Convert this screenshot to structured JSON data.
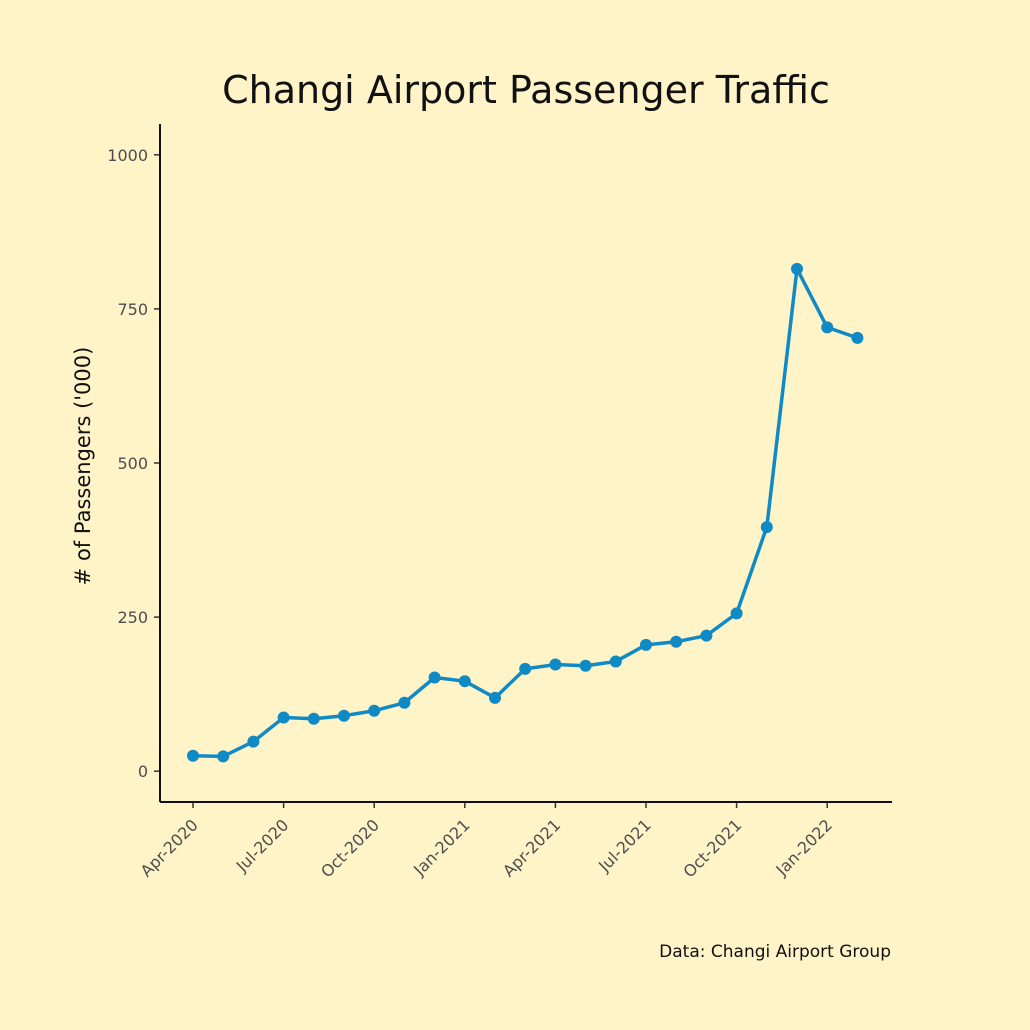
{
  "chart_data": {
    "type": "line",
    "title": "Changi Airport Passenger Traffic",
    "xlabel": "",
    "ylabel": "# of Passengers ('000)",
    "caption": "Data: Changi Airport Group",
    "x": [
      "Apr-2020",
      "May-2020",
      "Jun-2020",
      "Jul-2020",
      "Aug-2020",
      "Sep-2020",
      "Oct-2020",
      "Nov-2020",
      "Dec-2020",
      "Jan-2021",
      "Feb-2021",
      "Mar-2021",
      "Apr-2021",
      "May-2021",
      "Jun-2021",
      "Jul-2021",
      "Aug-2021",
      "Sep-2021",
      "Oct-2021",
      "Nov-2021",
      "Dec-2021",
      "Jan-2022",
      "Feb-2022"
    ],
    "series": [
      {
        "name": "Passengers",
        "values": [
          25,
          24,
          48,
          87,
          85,
          90,
          98,
          111,
          152,
          146,
          119,
          166,
          173,
          171,
          178,
          205,
          210,
          220,
          256,
          396,
          815,
          720,
          703
        ]
      }
    ],
    "x_tick_labels": [
      "Apr-2020",
      "Jul-2020",
      "Oct-2020",
      "Jan-2021",
      "Apr-2021",
      "Jul-2021",
      "Oct-2021",
      "Jan-2022"
    ],
    "y_ticks": [
      0,
      250,
      500,
      750,
      1000
    ],
    "y_tick_labels": [
      "0",
      "250",
      "500",
      "750",
      "1000"
    ],
    "ylim": [
      -50,
      1050
    ],
    "grid": false,
    "colors": {
      "line": "#0f8ac4",
      "axis": "#111111",
      "background": "#fff3c8"
    }
  }
}
